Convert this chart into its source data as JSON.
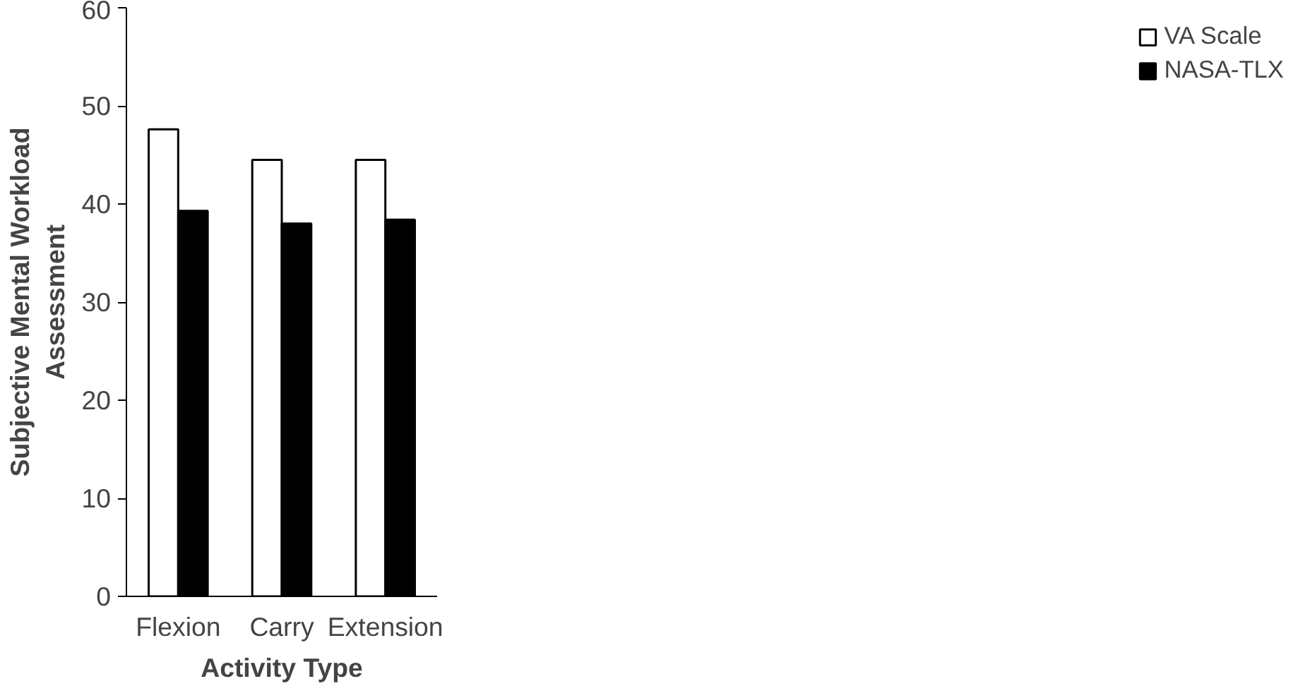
{
  "chart_data": {
    "type": "bar",
    "xlabel": "Activity Type",
    "ylabel": "Subjective Mental Workload\nAssessment",
    "categories": [
      "Flexion",
      "Carry",
      "Extension"
    ],
    "series": [
      {
        "name": "VA Scale",
        "color": "#ffffff",
        "values": [
          47.6,
          44.5,
          44.5
        ]
      },
      {
        "name": "NASA-TLX",
        "color": "#000000",
        "values": [
          39.3,
          38.0,
          38.4
        ]
      }
    ],
    "ylim": [
      0,
      60
    ],
    "yticks": [
      0,
      10,
      20,
      30,
      40,
      50,
      60
    ],
    "grid": false,
    "legend": "right"
  }
}
